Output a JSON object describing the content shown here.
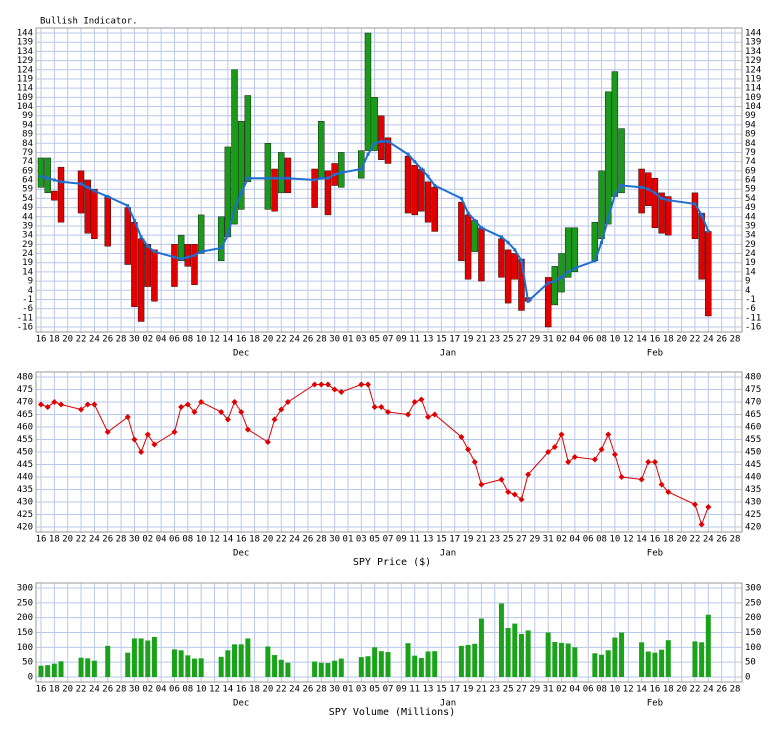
{
  "chart_data": [
    {
      "type": "range",
      "title": "Bullish Indicator.",
      "x": [
        0,
        1,
        2,
        3,
        6,
        7,
        8,
        10,
        13,
        14,
        15,
        16,
        17,
        20,
        21,
        22,
        23,
        24,
        27,
        28,
        29,
        30,
        31,
        34,
        35,
        36,
        37,
        41,
        42,
        43,
        44,
        45,
        48,
        49,
        50,
        51,
        52,
        55,
        56,
        57,
        58,
        59,
        63,
        64,
        65,
        66,
        69,
        70,
        71,
        72,
        73,
        76,
        77,
        78,
        79,
        80,
        83,
        84,
        85,
        86,
        87,
        90,
        91,
        92,
        93,
        94,
        98,
        99,
        100
      ],
      "open": [
        60,
        57,
        58,
        71,
        69,
        64,
        59,
        55,
        49,
        41,
        32,
        29,
        26,
        29,
        20,
        29,
        29,
        24,
        20,
        33,
        40,
        48,
        63,
        48,
        70,
        57,
        76,
        70,
        65,
        69,
        73,
        60,
        65,
        80,
        80,
        99,
        87,
        77,
        72,
        70,
        63,
        60,
        52,
        45,
        25,
        38,
        32,
        26,
        24,
        21,
        0,
        11,
        -4,
        3,
        11,
        14,
        20,
        32,
        40,
        55,
        57,
        70,
        68,
        65,
        57,
        55,
        57,
        46,
        36
      ],
      "close": [
        76,
        76,
        53,
        41,
        46,
        35,
        32,
        28,
        18,
        -5,
        -13,
        6,
        -2,
        6,
        34,
        17,
        7,
        45,
        44,
        82,
        124,
        96,
        110,
        84,
        47,
        79,
        57,
        49,
        96,
        45,
        61,
        79,
        80,
        144,
        109,
        75,
        73,
        46,
        45,
        47,
        41,
        36,
        20,
        10,
        42,
        9,
        11,
        -3,
        10,
        -7,
        -2,
        -16,
        17,
        24,
        38,
        38,
        41,
        69,
        112,
        123,
        92,
        46,
        50,
        38,
        35,
        34,
        32,
        10,
        -10
      ],
      "line": [
        66,
        65,
        64,
        63,
        62,
        60,
        58,
        55,
        50,
        42,
        33,
        28,
        25,
        22,
        21,
        22,
        23,
        25,
        27,
        34,
        48,
        57,
        65,
        65,
        65,
        65,
        65,
        64,
        65,
        65,
        67,
        68,
        70,
        78,
        84,
        85,
        85,
        78,
        74,
        70,
        66,
        61,
        54,
        46,
        42,
        38,
        33,
        30,
        26,
        20,
        -2,
        8,
        9,
        11,
        14,
        16,
        20,
        30,
        43,
        56,
        61,
        60,
        59,
        57,
        54,
        53,
        51,
        45,
        36
      ],
      "up_color": "#1a9a1a",
      "down_color": "#e00000",
      "line_color": "#1f6fd0",
      "xlim": [
        0,
        104
      ],
      "xticks": [
        {
          "value": 0,
          "label": "16"
        },
        {
          "value": 2,
          "label": "18"
        },
        {
          "value": 4,
          "label": "20"
        },
        {
          "value": 6,
          "label": "22"
        },
        {
          "value": 8,
          "label": "24"
        },
        {
          "value": 10,
          "label": "26"
        },
        {
          "value": 12,
          "label": "28"
        },
        {
          "value": 14,
          "label": "30"
        },
        {
          "value": 16,
          "label": "02"
        },
        {
          "value": 18,
          "label": "04"
        },
        {
          "value": 20,
          "label": "06"
        },
        {
          "value": 22,
          "label": "08"
        },
        {
          "value": 24,
          "label": "10"
        },
        {
          "value": 26,
          "label": "12"
        },
        {
          "value": 28,
          "label": "14"
        },
        {
          "value": 30,
          "label": "16"
        },
        {
          "value": 32,
          "label": "18"
        },
        {
          "value": 34,
          "label": "20"
        },
        {
          "value": 36,
          "label": "22"
        },
        {
          "value": 38,
          "label": "24"
        },
        {
          "value": 40,
          "label": "26"
        },
        {
          "value": 42,
          "label": "28"
        },
        {
          "value": 44,
          "label": "30"
        },
        {
          "value": 46,
          "label": "01"
        },
        {
          "value": 48,
          "label": "03"
        },
        {
          "value": 50,
          "label": "05"
        },
        {
          "value": 52,
          "label": "07"
        },
        {
          "value": 54,
          "label": "09"
        },
        {
          "value": 56,
          "label": "11"
        },
        {
          "value": 58,
          "label": "13"
        },
        {
          "value": 60,
          "label": "15"
        },
        {
          "value": 62,
          "label": "17"
        },
        {
          "value": 64,
          "label": "19"
        },
        {
          "value": 66,
          "label": "21"
        },
        {
          "value": 68,
          "label": "23"
        },
        {
          "value": 70,
          "label": "25"
        },
        {
          "value": 72,
          "label": "27"
        },
        {
          "value": 74,
          "label": "29"
        },
        {
          "value": 76,
          "label": "31"
        },
        {
          "value": 78,
          "label": "02"
        },
        {
          "value": 80,
          "label": "04"
        },
        {
          "value": 82,
          "label": "06"
        },
        {
          "value": 84,
          "label": "08"
        },
        {
          "value": 86,
          "label": "10"
        },
        {
          "value": 88,
          "label": "12"
        },
        {
          "value": 90,
          "label": "14"
        },
        {
          "value": 92,
          "label": "16"
        },
        {
          "value": 94,
          "label": "18"
        },
        {
          "value": 96,
          "label": "20"
        },
        {
          "value": 98,
          "label": "22"
        },
        {
          "value": 100,
          "label": "24"
        },
        {
          "value": 102,
          "label": "26"
        },
        {
          "value": 104,
          "label": "28"
        }
      ],
      "month_ticks": [
        {
          "value": 30,
          "label": "Dec"
        },
        {
          "value": 61,
          "label": "Jan"
        },
        {
          "value": 92,
          "label": "Feb"
        }
      ],
      "ylim": [
        -16,
        144
      ],
      "yticks": [
        -16,
        -11,
        -6,
        -1,
        4,
        9,
        14,
        19,
        24,
        29,
        34,
        39,
        44,
        49,
        54,
        59,
        64,
        69,
        74,
        79,
        84,
        89,
        94,
        99,
        104,
        109,
        114,
        119,
        124,
        129,
        134,
        139,
        144
      ],
      "grid": true
    },
    {
      "type": "line",
      "xlabel": "SPY Price ($)",
      "x": [
        0,
        1,
        2,
        3,
        6,
        7,
        8,
        10,
        13,
        14,
        15,
        16,
        17,
        20,
        21,
        22,
        23,
        24,
        27,
        28,
        29,
        30,
        31,
        34,
        35,
        36,
        37,
        41,
        42,
        43,
        44,
        45,
        48,
        49,
        50,
        51,
        52,
        55,
        56,
        57,
        58,
        59,
        63,
        64,
        65,
        66,
        69,
        70,
        71,
        72,
        73,
        76,
        77,
        78,
        79,
        80,
        83,
        84,
        85,
        86,
        87,
        90,
        91,
        92,
        93,
        94,
        98,
        99,
        100
      ],
      "values": [
        469,
        468,
        470,
        469,
        467,
        469,
        469,
        458,
        464,
        455,
        450,
        457,
        453,
        458,
        468,
        469,
        466,
        470,
        466,
        463,
        470,
        466,
        459,
        454,
        463,
        467,
        470,
        477,
        477,
        477,
        475,
        474,
        477,
        477,
        468,
        468,
        466,
        465,
        470,
        471,
        464,
        465,
        456,
        451,
        446,
        437,
        439,
        434,
        433,
        431,
        441,
        450,
        452,
        457,
        446,
        448,
        447,
        451,
        457,
        449,
        440,
        439,
        446,
        446,
        437,
        434,
        429,
        421,
        428
      ],
      "color": "#e00000",
      "xlim": [
        0,
        104
      ],
      "xticks": [
        {
          "value": 0,
          "label": "16"
        },
        {
          "value": 2,
          "label": "18"
        },
        {
          "value": 4,
          "label": "20"
        },
        {
          "value": 6,
          "label": "22"
        },
        {
          "value": 8,
          "label": "24"
        },
        {
          "value": 10,
          "label": "26"
        },
        {
          "value": 12,
          "label": "28"
        },
        {
          "value": 14,
          "label": "30"
        },
        {
          "value": 16,
          "label": "02"
        },
        {
          "value": 18,
          "label": "04"
        },
        {
          "value": 20,
          "label": "06"
        },
        {
          "value": 22,
          "label": "08"
        },
        {
          "value": 24,
          "label": "10"
        },
        {
          "value": 26,
          "label": "12"
        },
        {
          "value": 28,
          "label": "14"
        },
        {
          "value": 30,
          "label": "16"
        },
        {
          "value": 32,
          "label": "18"
        },
        {
          "value": 34,
          "label": "20"
        },
        {
          "value": 36,
          "label": "22"
        },
        {
          "value": 38,
          "label": "24"
        },
        {
          "value": 40,
          "label": "26"
        },
        {
          "value": 42,
          "label": "28"
        },
        {
          "value": 44,
          "label": "30"
        },
        {
          "value": 46,
          "label": "01"
        },
        {
          "value": 48,
          "label": "03"
        },
        {
          "value": 50,
          "label": "05"
        },
        {
          "value": 52,
          "label": "07"
        },
        {
          "value": 54,
          "label": "09"
        },
        {
          "value": 56,
          "label": "11"
        },
        {
          "value": 58,
          "label": "13"
        },
        {
          "value": 60,
          "label": "15"
        },
        {
          "value": 62,
          "label": "17"
        },
        {
          "value": 64,
          "label": "19"
        },
        {
          "value": 66,
          "label": "21"
        },
        {
          "value": 68,
          "label": "23"
        },
        {
          "value": 70,
          "label": "25"
        },
        {
          "value": 72,
          "label": "27"
        },
        {
          "value": 74,
          "label": "29"
        },
        {
          "value": 76,
          "label": "31"
        },
        {
          "value": 78,
          "label": "02"
        },
        {
          "value": 80,
          "label": "04"
        },
        {
          "value": 82,
          "label": "06"
        },
        {
          "value": 84,
          "label": "08"
        },
        {
          "value": 86,
          "label": "10"
        },
        {
          "value": 88,
          "label": "12"
        },
        {
          "value": 90,
          "label": "14"
        },
        {
          "value": 92,
          "label": "16"
        },
        {
          "value": 94,
          "label": "18"
        },
        {
          "value": 96,
          "label": "20"
        },
        {
          "value": 98,
          "label": "22"
        },
        {
          "value": 100,
          "label": "24"
        },
        {
          "value": 102,
          "label": "26"
        },
        {
          "value": 104,
          "label": "28"
        }
      ],
      "month_ticks": [
        {
          "value": 30,
          "label": "Dec"
        },
        {
          "value": 61,
          "label": "Jan"
        },
        {
          "value": 92,
          "label": "Feb"
        }
      ],
      "ylim": [
        420,
        480
      ],
      "yticks": [
        420,
        425,
        430,
        435,
        440,
        445,
        450,
        455,
        460,
        465,
        470,
        475,
        480
      ],
      "grid": true
    },
    {
      "type": "bar",
      "xlabel": "SPY Volume (Millions)",
      "x": [
        0,
        1,
        2,
        3,
        6,
        7,
        8,
        10,
        13,
        14,
        15,
        16,
        17,
        20,
        21,
        22,
        23,
        24,
        27,
        28,
        29,
        30,
        31,
        34,
        35,
        36,
        37,
        41,
        42,
        43,
        44,
        45,
        48,
        49,
        50,
        51,
        52,
        55,
        56,
        57,
        58,
        59,
        63,
        64,
        65,
        66,
        69,
        70,
        71,
        72,
        73,
        76,
        77,
        78,
        79,
        80,
        83,
        84,
        85,
        86,
        87,
        90,
        91,
        92,
        93,
        94,
        98,
        99,
        100
      ],
      "values": [
        38,
        40,
        45,
        53,
        65,
        63,
        55,
        105,
        82,
        130,
        130,
        123,
        135,
        93,
        90,
        73,
        62,
        63,
        68,
        90,
        110,
        110,
        130,
        103,
        74,
        58,
        48,
        52,
        48,
        47,
        55,
        62,
        67,
        70,
        100,
        87,
        84,
        114,
        72,
        64,
        86,
        87,
        105,
        108,
        112,
        197,
        248,
        165,
        180,
        145,
        157,
        150,
        118,
        115,
        113,
        100,
        80,
        75,
        90,
        133,
        150,
        117,
        86,
        82,
        92,
        124,
        120,
        117,
        210
      ],
      "color": "#1aa31a",
      "xlim": [
        0,
        104
      ],
      "xticks": [
        {
          "value": 0,
          "label": "16"
        },
        {
          "value": 2,
          "label": "18"
        },
        {
          "value": 4,
          "label": "20"
        },
        {
          "value": 6,
          "label": "22"
        },
        {
          "value": 8,
          "label": "24"
        },
        {
          "value": 10,
          "label": "26"
        },
        {
          "value": 12,
          "label": "28"
        },
        {
          "value": 14,
          "label": "30"
        },
        {
          "value": 16,
          "label": "02"
        },
        {
          "value": 18,
          "label": "04"
        },
        {
          "value": 20,
          "label": "06"
        },
        {
          "value": 22,
          "label": "08"
        },
        {
          "value": 24,
          "label": "10"
        },
        {
          "value": 26,
          "label": "12"
        },
        {
          "value": 28,
          "label": "14"
        },
        {
          "value": 30,
          "label": "16"
        },
        {
          "value": 32,
          "label": "18"
        },
        {
          "value": 34,
          "label": "20"
        },
        {
          "value": 36,
          "label": "22"
        },
        {
          "value": 38,
          "label": "24"
        },
        {
          "value": 40,
          "label": "26"
        },
        {
          "value": 42,
          "label": "28"
        },
        {
          "value": 44,
          "label": "30"
        },
        {
          "value": 46,
          "label": "01"
        },
        {
          "value": 48,
          "label": "03"
        },
        {
          "value": 50,
          "label": "05"
        },
        {
          "value": 52,
          "label": "07"
        },
        {
          "value": 54,
          "label": "09"
        },
        {
          "value": 56,
          "label": "11"
        },
        {
          "value": 58,
          "label": "13"
        },
        {
          "value": 60,
          "label": "15"
        },
        {
          "value": 62,
          "label": "17"
        },
        {
          "value": 64,
          "label": "19"
        },
        {
          "value": 66,
          "label": "21"
        },
        {
          "value": 68,
          "label": "23"
        },
        {
          "value": 70,
          "label": "25"
        },
        {
          "value": 72,
          "label": "27"
        },
        {
          "value": 74,
          "label": "29"
        },
        {
          "value": 76,
          "label": "31"
        },
        {
          "value": 78,
          "label": "02"
        },
        {
          "value": 80,
          "label": "04"
        },
        {
          "value": 82,
          "label": "06"
        },
        {
          "value": 84,
          "label": "08"
        },
        {
          "value": 86,
          "label": "10"
        },
        {
          "value": 88,
          "label": "12"
        },
        {
          "value": 90,
          "label": "14"
        },
        {
          "value": 92,
          "label": "16"
        },
        {
          "value": 94,
          "label": "18"
        },
        {
          "value": 96,
          "label": "20"
        },
        {
          "value": 98,
          "label": "22"
        },
        {
          "value": 100,
          "label": "24"
        },
        {
          "value": 102,
          "label": "26"
        },
        {
          "value": 104,
          "label": "28"
        }
      ],
      "month_ticks": [
        {
          "value": 30,
          "label": "Dec"
        },
        {
          "value": 61,
          "label": "Jan"
        },
        {
          "value": 92,
          "label": "Feb"
        }
      ],
      "ylim": [
        0,
        300
      ],
      "yticks": [
        0,
        50,
        100,
        150,
        200,
        250,
        300
      ],
      "grid": true
    }
  ]
}
